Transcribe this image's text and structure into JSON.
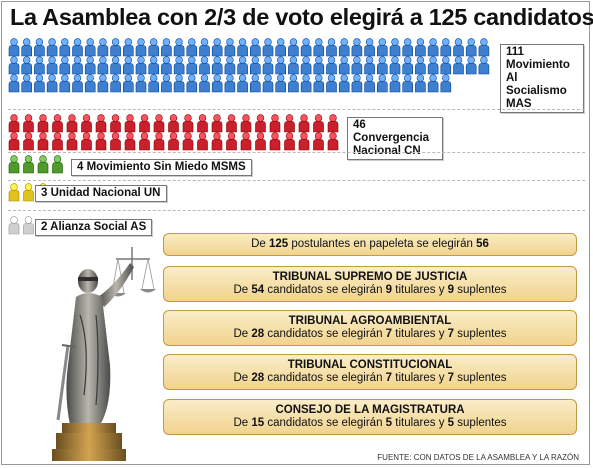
{
  "title": "La  Asamblea con 2/3 de voto elegirá a 125 candidatos",
  "parties": [
    {
      "count": 111,
      "label": "111 Movimiento Al Socialismo MAS",
      "line1": "111 Movimiento",
      "line2": "Al Socialismo",
      "line3": "MAS",
      "color": "#3e7fd0"
    },
    {
      "count": 46,
      "label": "46 Convergencia Nacional CN",
      "line1": "46 Convergencia",
      "line2": "Nacional CN",
      "color": "#c8202c"
    },
    {
      "count": 4,
      "label": "4 Movimiento Sin Miedo MSMS",
      "color": "#4f9a2a"
    },
    {
      "count": 3,
      "label": "3 Unidad Nacional UN",
      "color": "#e2c21c"
    },
    {
      "count": 2,
      "label": "2 Alianza Social AS",
      "color": "#d0d0d0"
    }
  ],
  "boxes": [
    {
      "pre": "De ",
      "n1": "125",
      "mid": " postulantes en papeleta se elegirán ",
      "n2": "56"
    },
    {
      "heading": "TRIBUNAL SUPREMO DE JUSTICIA",
      "pre": "De ",
      "n1": "54",
      "mid": " candidatos se elegirán ",
      "n2": "9",
      "post1": " titulares y ",
      "n3": "9",
      "post2": " suplentes"
    },
    {
      "heading": "TRIBUNAL AGROAMBIENTAL",
      "pre": "De ",
      "n1": "28",
      "mid": "  candidatos se elegirán ",
      "n2": "7",
      "post1": " titulares y ",
      "n3": "7",
      "post2": " suplentes"
    },
    {
      "heading": "TRIBUNAL CONSTITUCIONAL",
      "pre": "De ",
      "n1": "28",
      "mid": " candidatos se elegirán ",
      "n2": "7",
      "post1": " titulares y ",
      "n3": "7",
      "post2": " suplentes"
    },
    {
      "heading": "CONSEJO DE LA MAGISTRATURA",
      "pre": "De ",
      "n1": "15",
      "mid": " candidatos se elegirán ",
      "n2": "5",
      "post1": " titulares y ",
      "n3": "5",
      "post2": " suplentes"
    }
  ],
  "source": "FUENTE: CON DATOS DE LA ASAMBLEA Y LA RAZÓN",
  "statue_icon": "justice-statue-icon",
  "person_icon": "person-icon"
}
